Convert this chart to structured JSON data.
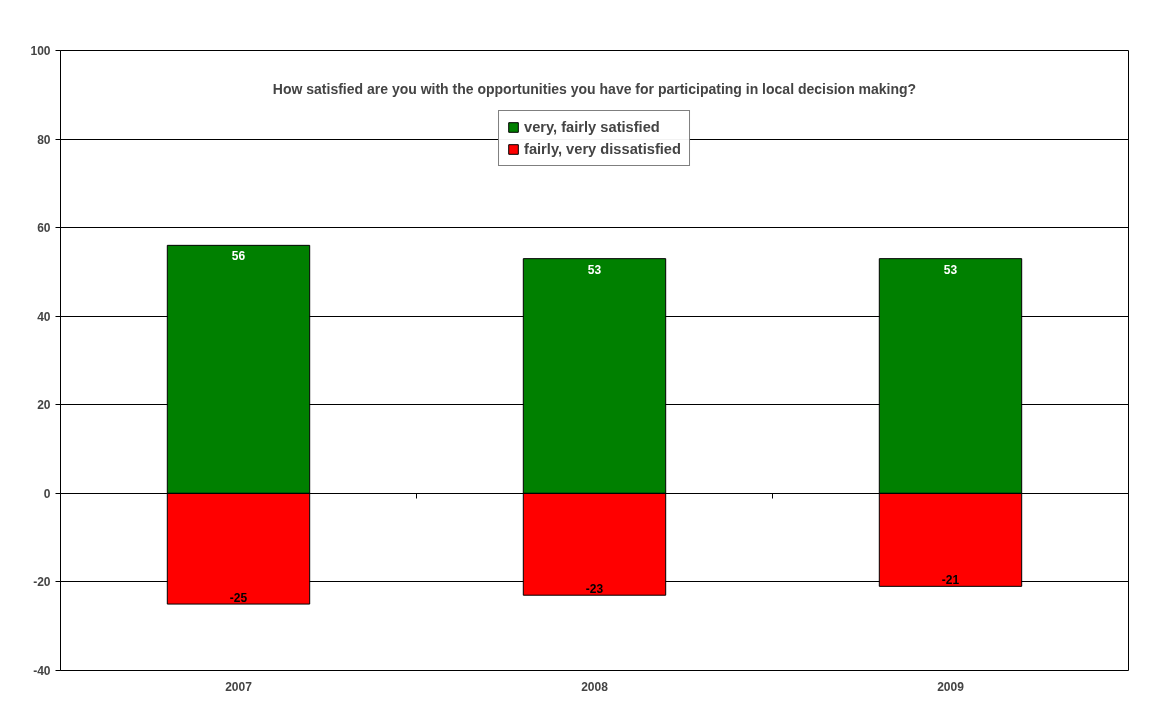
{
  "chart_data": {
    "type": "bar",
    "title": "How satisfied are you with the opportunities you have for participating in local decision making?",
    "categories": [
      "2007",
      "2008",
      "2009"
    ],
    "series": [
      {
        "name": "very, fairly satisfied",
        "color": "#008000",
        "values": [
          56,
          53,
          53
        ]
      },
      {
        "name": "fairly, very dissatisfied",
        "color": "#ff0000",
        "values": [
          -25,
          -23,
          -21
        ]
      }
    ],
    "stacked": true,
    "data_labels": true,
    "legend": "top",
    "grid": "y",
    "ylim": [
      -40,
      100
    ],
    "yticks": [
      -40,
      -20,
      0,
      20,
      40,
      60,
      80,
      100
    ]
  }
}
